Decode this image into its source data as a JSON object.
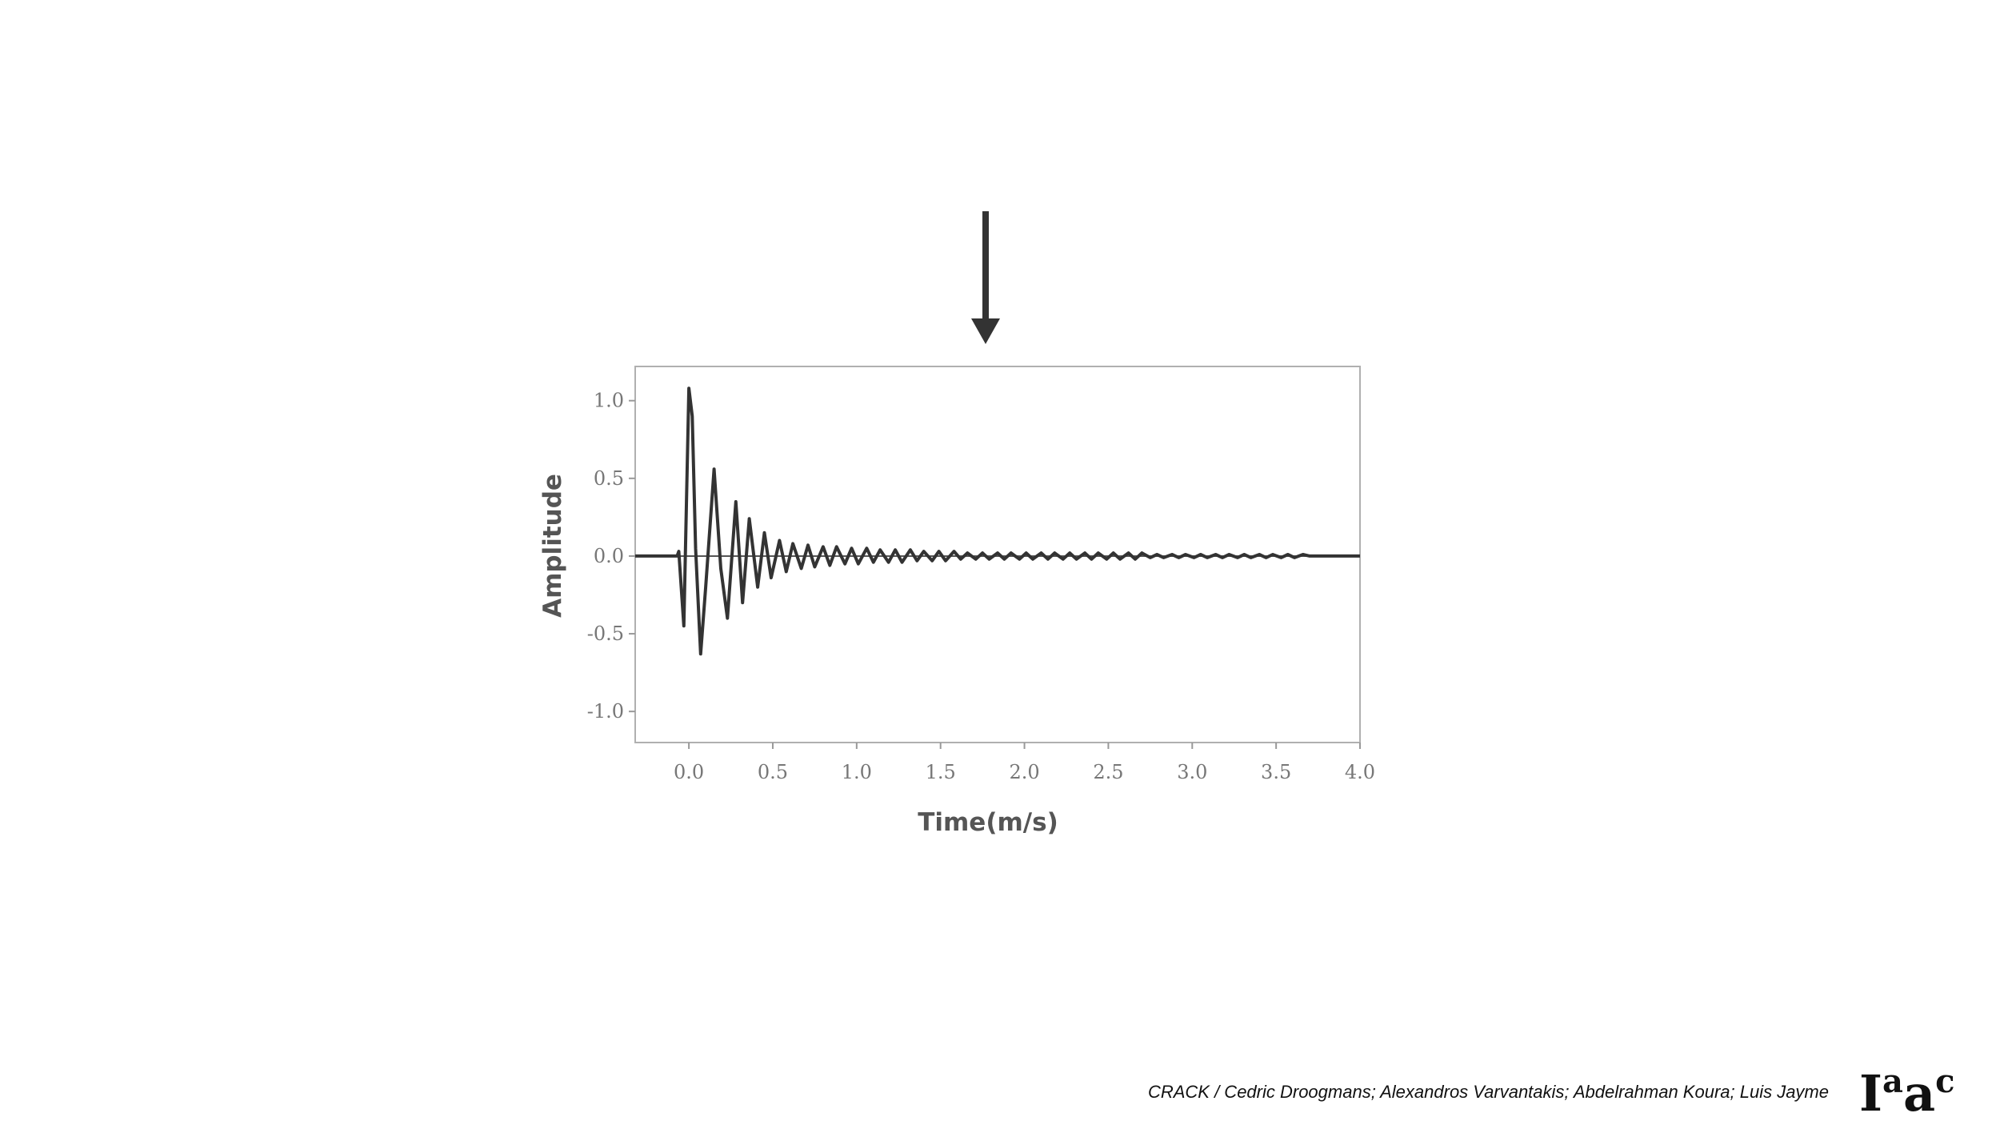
{
  "slide": {
    "credit": "CRACK / Cedric Droogmans; Alexandros Varvantakis; Abdelrahman Koura; Luis Jayme",
    "logo_text": "Iaac"
  },
  "chart_data": {
    "type": "line",
    "title": "",
    "xlabel": "Time(m/s)",
    "ylabel": "Amplitude",
    "xlim": [
      -0.32,
      4.0
    ],
    "ylim": [
      -1.2,
      1.22
    ],
    "x_ticks": [
      "0.0",
      "0.5",
      "1.0",
      "1.5",
      "2.0",
      "2.5",
      "3.0",
      "3.5",
      "4.0"
    ],
    "y_ticks": [
      "1.0",
      "0.5",
      "0.0",
      "-0.5",
      "-1.0"
    ],
    "grid": false,
    "legend": "none",
    "line_color": "#333333",
    "series": [
      {
        "x": [
          -0.32,
          -0.07,
          -0.06,
          -0.03,
          0.0,
          0.02,
          0.04,
          0.07,
          0.1,
          0.15,
          0.19,
          0.23,
          0.28,
          0.32,
          0.36,
          0.41,
          0.45,
          0.49,
          0.54,
          0.58,
          0.62,
          0.67,
          0.71,
          0.75,
          0.8,
          0.84,
          0.88,
          0.93,
          0.97,
          1.01,
          1.06,
          1.1,
          1.14,
          1.19,
          1.23,
          1.27,
          1.32,
          1.36,
          1.4,
          1.45,
          1.49,
          1.53,
          1.58,
          1.62,
          1.66,
          1.71,
          1.75,
          1.79,
          1.84,
          1.88,
          1.92,
          1.97,
          2.01,
          2.05,
          2.1,
          2.14,
          2.18,
          2.23,
          2.27,
          2.31,
          2.36,
          2.4,
          2.44,
          2.49,
          2.53,
          2.57,
          2.62,
          2.66,
          2.7,
          2.75,
          2.79,
          2.83,
          2.88,
          2.92,
          2.96,
          3.01,
          3.05,
          3.09,
          3.14,
          3.18,
          3.22,
          3.27,
          3.31,
          3.35,
          3.4,
          3.44,
          3.48,
          3.53,
          3.57,
          3.61,
          3.66,
          3.7,
          4.0
        ],
        "y": [
          0.0,
          0.0,
          0.03,
          -0.45,
          1.08,
          0.9,
          0.05,
          -0.63,
          -0.2,
          0.56,
          -0.08,
          -0.4,
          0.35,
          -0.3,
          0.24,
          -0.2,
          0.15,
          -0.14,
          0.1,
          -0.1,
          0.08,
          -0.08,
          0.07,
          -0.07,
          0.06,
          -0.06,
          0.06,
          -0.05,
          0.05,
          -0.05,
          0.05,
          -0.04,
          0.04,
          -0.04,
          0.04,
          -0.04,
          0.04,
          -0.03,
          0.03,
          -0.03,
          0.03,
          -0.03,
          0.03,
          -0.02,
          0.02,
          -0.02,
          0.02,
          -0.02,
          0.02,
          -0.02,
          0.02,
          -0.02,
          0.02,
          -0.02,
          0.02,
          -0.02,
          0.02,
          -0.02,
          0.02,
          -0.02,
          0.02,
          -0.02,
          0.02,
          -0.02,
          0.02,
          -0.02,
          0.02,
          -0.02,
          0.02,
          -0.01,
          0.01,
          -0.01,
          0.01,
          -0.01,
          0.01,
          -0.01,
          0.01,
          -0.01,
          0.01,
          -0.01,
          0.01,
          -0.01,
          0.01,
          -0.01,
          0.01,
          -0.01,
          0.01,
          -0.01,
          0.01,
          -0.01,
          0.01,
          0.0,
          0.0
        ]
      }
    ]
  }
}
